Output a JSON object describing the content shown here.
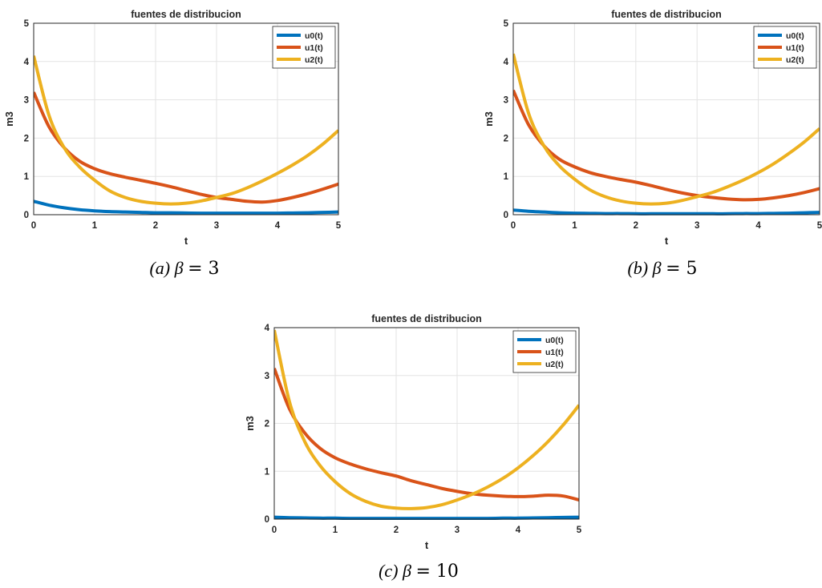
{
  "chart_data": [
    {
      "type": "line",
      "title": "fuentes de distribucion",
      "xlabel": "t",
      "ylabel": "m3",
      "xlim": [
        0,
        5
      ],
      "ylim": [
        0,
        5
      ],
      "xticks": [
        "0",
        "1",
        "2",
        "3",
        "4",
        "5"
      ],
      "yticks": [
        "0",
        "1",
        "2",
        "3",
        "4",
        "5"
      ],
      "grid": true,
      "legend_position": "top-right",
      "caption": {
        "prefix": "(a)",
        "symbol": "β",
        "value": "= 3"
      },
      "x": [
        0,
        0.25,
        0.5,
        0.75,
        1,
        1.25,
        1.5,
        1.75,
        2,
        2.25,
        2.5,
        2.75,
        3,
        3.25,
        3.5,
        3.75,
        4,
        4.25,
        4.5,
        4.75,
        5
      ],
      "series": [
        {
          "name": "u0(t)",
          "color": "#0072BD",
          "values": [
            0.35,
            0.25,
            0.18,
            0.13,
            0.1,
            0.08,
            0.07,
            0.06,
            0.05,
            0.05,
            0.045,
            0.04,
            0.04,
            0.04,
            0.04,
            0.04,
            0.04,
            0.045,
            0.05,
            0.06,
            0.07
          ]
        },
        {
          "name": "u1(t)",
          "color": "#D95319",
          "values": [
            3.2,
            2.3,
            1.75,
            1.4,
            1.2,
            1.07,
            0.98,
            0.9,
            0.82,
            0.73,
            0.63,
            0.53,
            0.45,
            0.4,
            0.35,
            0.33,
            0.37,
            0.45,
            0.55,
            0.67,
            0.8
          ]
        },
        {
          "name": "u2(t)",
          "color": "#EDB120",
          "values": [
            4.15,
            2.6,
            1.75,
            1.25,
            0.9,
            0.62,
            0.45,
            0.35,
            0.3,
            0.28,
            0.3,
            0.36,
            0.45,
            0.55,
            0.7,
            0.88,
            1.08,
            1.3,
            1.55,
            1.85,
            2.2
          ]
        }
      ]
    },
    {
      "type": "line",
      "title": "fuentes de distribucion",
      "xlabel": "t",
      "ylabel": "m3",
      "xlim": [
        0,
        5
      ],
      "ylim": [
        0,
        5
      ],
      "xticks": [
        "0",
        "1",
        "2",
        "3",
        "4",
        "5"
      ],
      "yticks": [
        "0",
        "1",
        "2",
        "3",
        "4",
        "5"
      ],
      "grid": true,
      "legend_position": "top-right",
      "caption": {
        "prefix": "(b)",
        "symbol": "β",
        "value": "= 5"
      },
      "x": [
        0,
        0.25,
        0.5,
        0.75,
        1,
        1.25,
        1.5,
        1.75,
        2,
        2.25,
        2.5,
        2.75,
        3,
        3.25,
        3.5,
        3.75,
        4,
        4.25,
        4.5,
        4.75,
        5
      ],
      "series": [
        {
          "name": "u0(t)",
          "color": "#0072BD",
          "values": [
            0.12,
            0.09,
            0.07,
            0.05,
            0.04,
            0.035,
            0.03,
            0.03,
            0.025,
            0.025,
            0.025,
            0.025,
            0.025,
            0.025,
            0.025,
            0.03,
            0.03,
            0.035,
            0.04,
            0.05,
            0.06
          ]
        },
        {
          "name": "u1(t)",
          "color": "#D95319",
          "values": [
            3.25,
            2.35,
            1.8,
            1.45,
            1.25,
            1.1,
            1.0,
            0.92,
            0.85,
            0.76,
            0.66,
            0.57,
            0.5,
            0.45,
            0.41,
            0.39,
            0.4,
            0.44,
            0.5,
            0.58,
            0.68
          ]
        },
        {
          "name": "u2(t)",
          "color": "#EDB120",
          "values": [
            4.2,
            2.65,
            1.8,
            1.28,
            0.93,
            0.65,
            0.47,
            0.36,
            0.3,
            0.28,
            0.3,
            0.37,
            0.47,
            0.58,
            0.73,
            0.9,
            1.1,
            1.33,
            1.6,
            1.9,
            2.25
          ]
        }
      ]
    },
    {
      "type": "line",
      "title": "fuentes de distribucion",
      "xlabel": "t",
      "ylabel": "m3",
      "xlim": [
        0,
        5
      ],
      "ylim": [
        0,
        4
      ],
      "xticks": [
        "0",
        "1",
        "2",
        "3",
        "4",
        "5"
      ],
      "yticks": [
        "0",
        "1",
        "2",
        "3",
        "4"
      ],
      "grid": true,
      "legend_position": "top-right",
      "caption": {
        "prefix": "(c)",
        "symbol": "β",
        "value": "= 10"
      },
      "x": [
        0,
        0.25,
        0.5,
        0.75,
        1,
        1.25,
        1.5,
        1.75,
        2,
        2.25,
        2.5,
        2.75,
        3,
        3.25,
        3.5,
        3.75,
        4,
        4.25,
        4.5,
        4.75,
        5
      ],
      "series": [
        {
          "name": "u0(t)",
          "color": "#0072BD",
          "values": [
            0.04,
            0.03,
            0.025,
            0.02,
            0.02,
            0.015,
            0.015,
            0.015,
            0.015,
            0.015,
            0.015,
            0.015,
            0.015,
            0.015,
            0.015,
            0.02,
            0.02,
            0.025,
            0.03,
            0.035,
            0.04
          ]
        },
        {
          "name": "u1(t)",
          "color": "#D95319",
          "values": [
            3.15,
            2.3,
            1.8,
            1.48,
            1.28,
            1.15,
            1.05,
            0.97,
            0.9,
            0.8,
            0.72,
            0.64,
            0.58,
            0.53,
            0.5,
            0.48,
            0.47,
            0.48,
            0.5,
            0.48,
            0.4
          ]
        },
        {
          "name": "u2(t)",
          "color": "#EDB120",
          "values": [
            3.95,
            2.45,
            1.62,
            1.12,
            0.78,
            0.53,
            0.37,
            0.27,
            0.23,
            0.22,
            0.24,
            0.3,
            0.4,
            0.52,
            0.67,
            0.85,
            1.07,
            1.33,
            1.63,
            1.98,
            2.38
          ]
        }
      ]
    }
  ]
}
